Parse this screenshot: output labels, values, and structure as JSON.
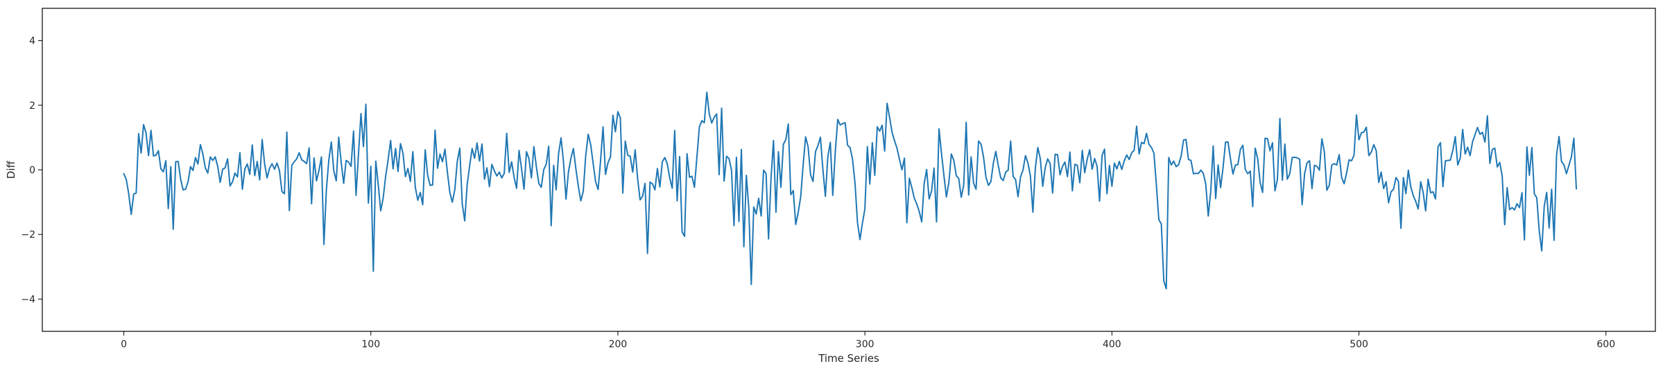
{
  "chart_data": {
    "type": "line",
    "title": "",
    "xlabel": "Time Series",
    "ylabel": "Diff",
    "xlim": [
      -33,
      620
    ],
    "ylim": [
      -5,
      5
    ],
    "x_ticks": [
      0,
      100,
      200,
      300,
      400,
      500,
      600
    ],
    "y_ticks": [
      -4,
      -2,
      0,
      2,
      4
    ],
    "grid": false,
    "legend": "none",
    "line_color": "#1f77b4",
    "series": [
      {
        "values": [
          -0.12,
          -0.3,
          -0.75,
          -1.38,
          -0.75,
          -0.72,
          1.12,
          0.52,
          1.4,
          1.14,
          0.44,
          1.22,
          0.43,
          0.45,
          0.59,
          0.03,
          -0.06,
          0.28,
          -1.2,
          0.1,
          -1.84,
          0.25,
          0.26,
          -0.29,
          -0.62,
          -0.6,
          -0.37,
          0.1,
          -0.02,
          0.38,
          0.18,
          0.78,
          0.49,
          0.06,
          -0.1,
          0.4,
          0.29,
          0.4,
          0.11,
          -0.39,
          0.02,
          0.06,
          0.34,
          -0.5,
          -0.37,
          -0.1,
          -0.22,
          0.53,
          -0.6,
          0.03,
          0.18,
          -0.14,
          0.77,
          -0.18,
          0.26,
          -0.31,
          0.94,
          0.18,
          -0.25,
          0.05,
          0.19,
          0.02,
          0.21,
          -0.02,
          -0.67,
          -0.74,
          1.17,
          -1.26,
          0.14,
          0.25,
          0.34,
          0.53,
          0.31,
          0.26,
          0.19,
          0.68,
          -1.05,
          0.37,
          -0.34,
          -0.02,
          0.4,
          -2.31,
          -0.61,
          0.31,
          0.86,
          -0.03,
          -0.34,
          1.01,
          0.23,
          -0.42,
          0.29,
          0.24,
          0.11,
          1.2,
          -0.79,
          0.49,
          1.74,
          0.72,
          2.03,
          -1.03,
          0.11,
          -3.14,
          0.27,
          -0.46,
          -1.27,
          -0.87,
          -0.19,
          0.31,
          0.91,
          0.03,
          0.66,
          -0.05,
          0.81,
          0.52,
          -0.21,
          0.04,
          -0.36,
          0.56,
          -0.54,
          -0.94,
          -0.7,
          -1.08,
          0.62,
          -0.17,
          -0.48,
          -0.47,
          1.23,
          0.05,
          0.49,
          0.25,
          0.64,
          -0.08,
          -0.71,
          -1.0,
          -0.61,
          0.27,
          0.67,
          -1.05,
          -1.58,
          -0.45,
          0.12,
          0.66,
          0.36,
          0.83,
          0.27,
          0.8,
          -0.29,
          0.06,
          -0.52,
          0.17,
          -0.03,
          -0.19,
          -0.07,
          -0.25,
          -0.11,
          1.13,
          -0.08,
          0.25,
          -0.24,
          -0.57,
          0.6,
          0.04,
          -0.6,
          0.56,
          0.35,
          -0.25,
          0.72,
          0.1,
          -0.42,
          -0.54,
          0.01,
          0.17,
          0.73,
          -1.73,
          0.14,
          -0.62,
          0.5,
          0.99,
          0.24,
          -0.91,
          -0.06,
          0.36,
          0.66,
          0.03,
          -0.51,
          -0.96,
          -0.66,
          0.45,
          1.1,
          0.78,
          0.19,
          -0.37,
          -0.61,
          0.29,
          1.33,
          -0.14,
          0.22,
          0.4,
          1.69,
          1.18,
          1.8,
          1.61,
          -0.72,
          0.89,
          0.45,
          0.42,
          -0.07,
          0.62,
          -0.27,
          -0.93,
          -0.82,
          -0.42,
          -2.59,
          -0.38,
          -0.43,
          -0.62,
          0.04,
          -0.53,
          0.25,
          0.38,
          0.19,
          -0.25,
          -0.57,
          1.22,
          -0.96,
          0.41,
          -1.92,
          -2.06,
          0.5,
          -0.23,
          -0.2,
          -0.54,
          0.4,
          1.33,
          1.52,
          1.46,
          2.4,
          1.73,
          1.45,
          1.63,
          1.73,
          -0.15,
          1.91,
          -0.35,
          0.42,
          0.35,
          -0.01,
          -1.73,
          0.39,
          -1.6,
          0.63,
          -2.38,
          -0.17,
          -1.18,
          -3.55,
          -1.15,
          -1.37,
          -0.88,
          -1.43,
          -0.01,
          -0.12,
          -2.14,
          -0.26,
          0.91,
          -1.31,
          0.56,
          -0.54,
          0.79,
          0.94,
          1.42,
          -0.77,
          -0.64,
          -1.69,
          -1.32,
          -0.84,
          0.14,
          1.02,
          0.72,
          -0.15,
          -0.36,
          0.56,
          0.75,
          1.01,
          0.01,
          -0.82,
          0.41,
          0.85,
          -0.79,
          0.54,
          1.56,
          1.39,
          1.43,
          1.46,
          0.76,
          0.69,
          0.32,
          -0.41,
          -1.63,
          -2.16,
          -1.65,
          -1.21,
          0.72,
          -0.44,
          0.84,
          -0.17,
          1.33,
          1.2,
          1.38,
          0.58,
          2.06,
          1.62,
          1.16,
          0.9,
          0.67,
          0.32,
          0.0,
          0.36,
          -1.64,
          -0.26,
          -0.55,
          -0.88,
          -1.06,
          -1.29,
          -1.61,
          -0.43,
          0.01,
          -0.9,
          -0.65,
          0.05,
          -1.61,
          1.27,
          0.51,
          -0.18,
          -0.84,
          -0.39,
          0.49,
          0.29,
          -0.18,
          -0.27,
          -0.85,
          -0.48,
          1.47,
          -0.78,
          0.4,
          -0.41,
          -0.6,
          0.89,
          0.8,
          0.41,
          -0.22,
          -0.48,
          -0.37,
          0.21,
          0.57,
          0.13,
          -0.25,
          -0.33,
          -0.07,
          -0.01,
          0.89,
          -0.2,
          -0.3,
          -0.83,
          -0.22,
          -0.01,
          0.44,
          0.21,
          -0.19,
          -1.31,
          0.05,
          0.69,
          0.35,
          -0.51,
          0.07,
          0.34,
          0.19,
          -0.72,
          0.48,
          0.47,
          -0.15,
          0.11,
          0.24,
          -0.21,
          0.55,
          -0.65,
          0.17,
          0.14,
          -0.4,
          0.6,
          -0.09,
          0.33,
          0.62,
          0.02,
          0.35,
          0.11,
          -0.97,
          0.44,
          0.64,
          -0.74,
          0.14,
          -0.51,
          0.21,
          0.03,
          0.26,
          0.01,
          0.28,
          0.46,
          0.32,
          0.53,
          0.6,
          1.35,
          0.49,
          0.85,
          0.81,
          1.13,
          0.79,
          0.69,
          0.52,
          -0.47,
          -1.54,
          -1.68,
          -3.44,
          -3.68,
          0.38,
          0.15,
          0.27,
          0.1,
          0.16,
          0.42,
          0.92,
          0.94,
          0.32,
          0.29,
          -0.12,
          -0.11,
          -0.11,
          -0.01,
          -0.11,
          -0.45,
          -1.43,
          -0.67,
          0.74,
          -0.89,
          0.15,
          -0.55,
          0.08,
          0.86,
          0.86,
          0.34,
          -0.13,
          0.15,
          0.16,
          0.63,
          0.76,
          0.01,
          -0.12,
          -0.04,
          -1.14,
          0.67,
          0.35,
          -0.39,
          -0.7,
          0.98,
          0.96,
          0.59,
          0.84,
          -0.65,
          -0.3,
          1.59,
          -0.32,
          0.8,
          -0.29,
          -0.12,
          0.38,
          0.39,
          0.37,
          0.33,
          -1.08,
          -0.12,
          0.22,
          0.28,
          -0.58,
          0.14,
          0.11,
          -0.01,
          0.96,
          0.56,
          -0.63,
          -0.48,
          0.15,
          0.19,
          0.15,
          0.47,
          -0.24,
          -0.43,
          -0.1,
          0.31,
          0.28,
          0.45,
          1.7,
          0.93,
          1.15,
          1.17,
          1.32,
          0.44,
          0.55,
          0.78,
          0.59,
          -0.39,
          -0.07,
          -0.58,
          -0.37,
          -1.02,
          -0.68,
          -0.6,
          -0.24,
          -0.36,
          -1.81,
          -0.24,
          -0.74,
          -0.01,
          -0.53,
          -0.8,
          -0.98,
          -1.21,
          -0.37,
          -0.7,
          -1.27,
          -0.29,
          -0.71,
          -0.68,
          -0.9,
          0.71,
          0.84,
          -0.52,
          0.28,
          0.29,
          0.3,
          0.6,
          1.03,
          0.15,
          0.36,
          1.25,
          0.49,
          0.7,
          0.44,
          0.87,
          1.09,
          1.31,
          1.1,
          1.16,
          0.86,
          1.67,
          0.2,
          0.63,
          0.67,
          0.09,
          0.23,
          -0.2,
          -1.7,
          -0.55,
          -1.23,
          -1.17,
          -1.24,
          -1.05,
          -1.17,
          -0.71,
          -2.17,
          0.71,
          -0.17,
          0.69,
          -0.74,
          -0.87,
          -1.9,
          -2.51,
          -1.13,
          -0.7,
          -1.8,
          -0.6,
          -2.18,
          0.46,
          1.03,
          0.26,
          0.15,
          -0.12,
          0.14,
          0.4,
          0.98,
          -0.59
        ]
      }
    ]
  }
}
